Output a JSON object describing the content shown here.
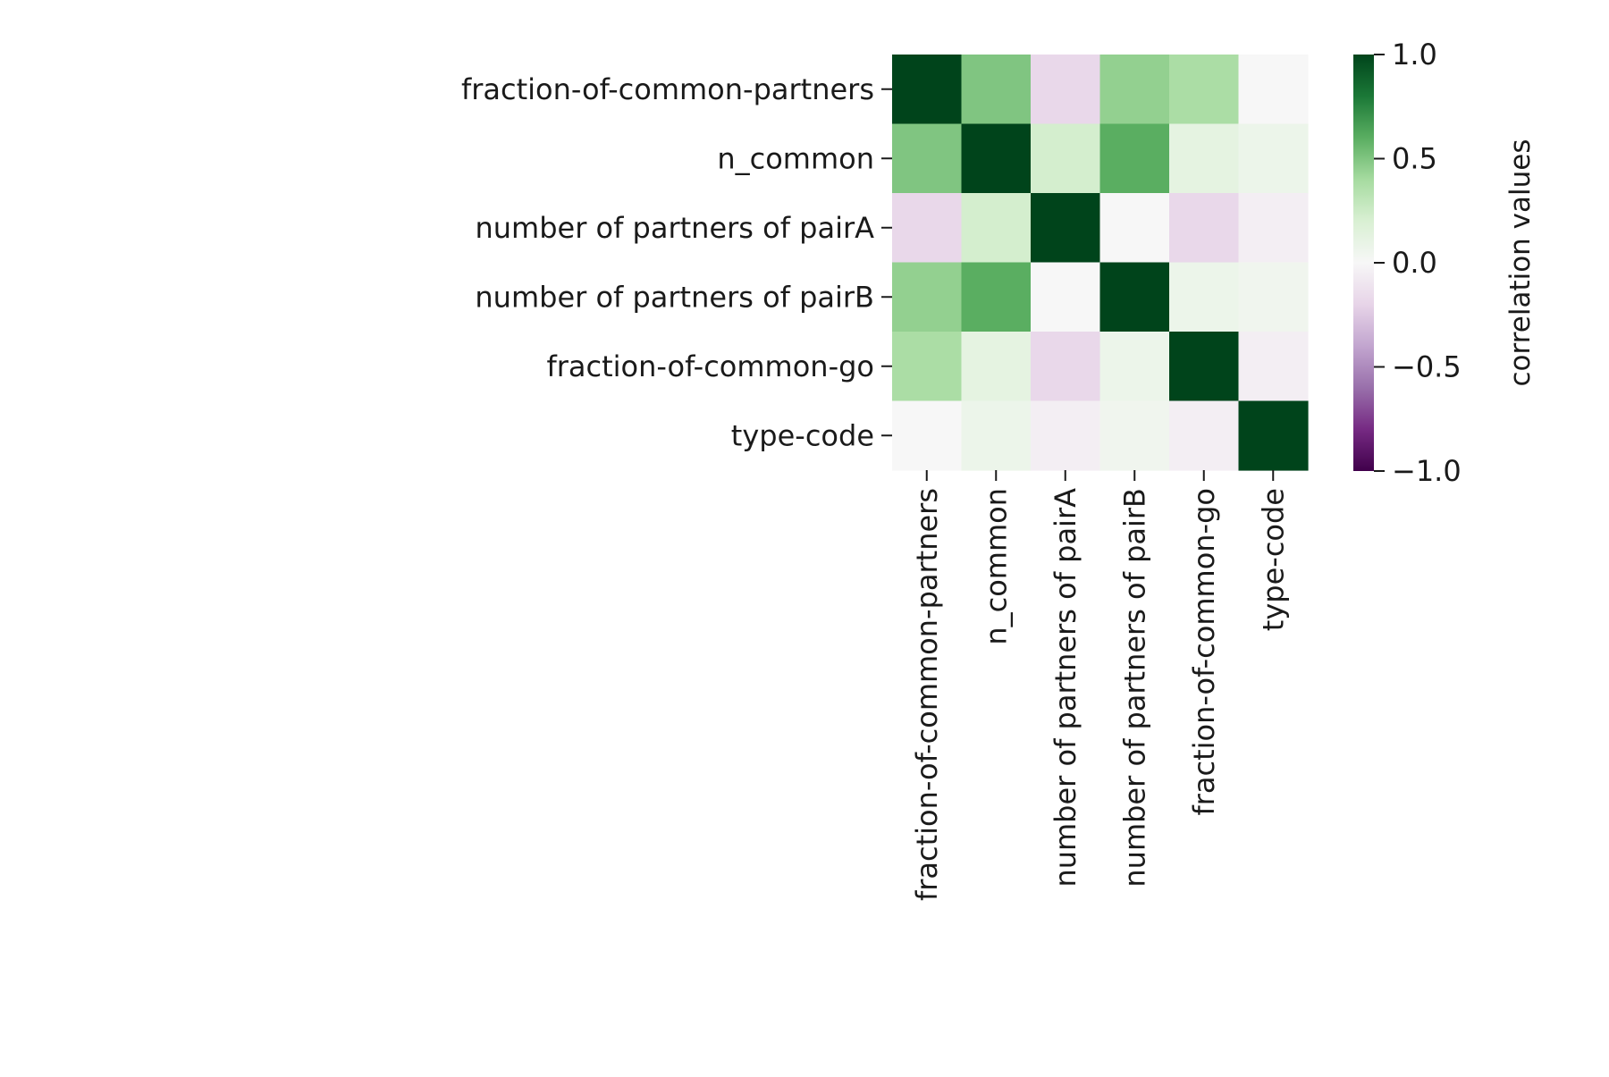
{
  "chart_data": {
    "type": "heatmap",
    "title": "",
    "row_labels": [
      "fraction-of-common-partners",
      "n_common",
      "number of partners of pairA",
      "number of partners of pairB",
      "fraction-of-common-go",
      "type-code"
    ],
    "col_labels": [
      "fraction-of-common-partners",
      "n_common",
      "number of partners of pairA",
      "number of partners of pairB",
      "fraction-of-common-go",
      "type-code"
    ],
    "values": [
      [
        1.0,
        0.5,
        -0.18,
        0.45,
        0.38,
        0.0
      ],
      [
        0.5,
        1.0,
        0.22,
        0.6,
        0.12,
        0.07
      ],
      [
        -0.18,
        0.22,
        1.0,
        0.0,
        -0.18,
        -0.05
      ],
      [
        0.45,
        0.6,
        0.0,
        1.0,
        0.07,
        0.05
      ],
      [
        0.38,
        0.12,
        -0.18,
        0.07,
        1.0,
        -0.05
      ],
      [
        0.0,
        0.07,
        -0.05,
        0.05,
        -0.05,
        1.0
      ]
    ],
    "colormap": "PRGn",
    "vmin": -1.0,
    "vmax": 1.0,
    "colorbar": {
      "label": "correlation values",
      "ticks": [
        1.0,
        0.5,
        0.0,
        -0.5,
        -1.0
      ],
      "tick_labels": [
        "1.0",
        "0.5",
        "0.0",
        "−0.5",
        "−1.0"
      ]
    },
    "grid": false,
    "legend": "colorbar-right"
  }
}
